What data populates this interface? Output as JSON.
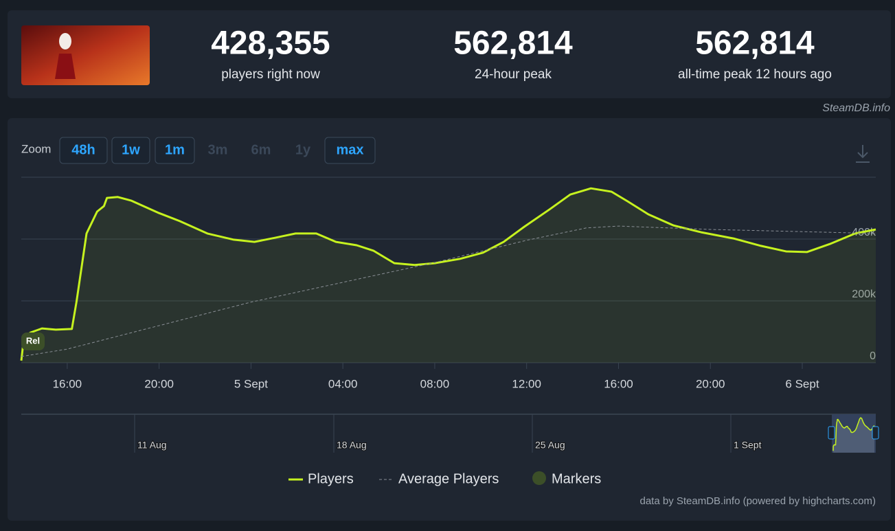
{
  "header": {
    "stats": [
      {
        "value": "428,355",
        "label": "players right now"
      },
      {
        "value": "562,814",
        "label": "24-hour peak"
      },
      {
        "value": "562,814",
        "label": "all-time peak 12 hours ago"
      }
    ],
    "source": "SteamDB.info"
  },
  "zoom": {
    "label": "Zoom",
    "buttons": [
      "48h",
      "1w",
      "1m",
      "3m",
      "6m",
      "1y",
      "max"
    ],
    "enabled": [
      true,
      true,
      true,
      false,
      false,
      false,
      true
    ]
  },
  "chart_data": {
    "type": "line",
    "series": [
      {
        "name": "Players",
        "color": "#c6f21f",
        "x": [
          -10,
          -9.88,
          -9.58,
          -9.1,
          -8.5,
          -7.8,
          -7.6,
          -7.16,
          -6.7,
          -6.4,
          -6.27,
          -5.8,
          -5.2,
          -4.0,
          -3.1,
          -1.9,
          -0.75,
          0.15,
          1.04,
          1.94,
          2.84,
          3.7,
          4.6,
          5.34,
          6.24,
          7.13,
          8.0,
          9.1,
          10.1,
          11.0,
          11.9,
          13.0,
          13.9,
          14.8,
          15.7,
          16.4,
          17.3,
          18.4,
          19.6,
          21.0,
          22.2,
          23.3,
          24.2,
          25.2,
          26.3,
          27.2
        ],
        "values": [
          6700,
          84000,
          98000,
          111000,
          107000,
          109000,
          196000,
          418000,
          489000,
          507000,
          533000,
          536000,
          524000,
          484000,
          458000,
          418000,
          398000,
          391000,
          404000,
          418000,
          418000,
          391000,
          380000,
          362000,
          322000,
          316000,
          322000,
          336000,
          356000,
          391000,
          440000,
          496000,
          544000,
          564000,
          553000,
          522000,
          480000,
          444000,
          422000,
          402000,
          378000,
          360000,
          358000,
          384000,
          418000,
          431000
        ]
      },
      {
        "name": "Average Players",
        "color": "#8a8f96",
        "x": [
          -10,
          -8,
          0,
          8,
          12,
          14.6,
          16,
          20,
          24,
          27.2
        ],
        "values": [
          20000,
          44000,
          196000,
          324000,
          396000,
          436000,
          442000,
          431000,
          424000,
          418000
        ]
      }
    ],
    "markers": {
      "name": "Markers",
      "color": "#3c4f28",
      "labels": [
        "Rel"
      ]
    },
    "xlim": [
      -10,
      27.2
    ],
    "xticks": [
      {
        "value": -8,
        "label": "16:00"
      },
      {
        "value": -4,
        "label": "20:00"
      },
      {
        "value": 0,
        "label": "5 Sept"
      },
      {
        "value": 4,
        "label": "04:00"
      },
      {
        "value": 8,
        "label": "08:00"
      },
      {
        "value": 12,
        "label": "12:00"
      },
      {
        "value": 16,
        "label": "16:00"
      },
      {
        "value": 20,
        "label": "20:00"
      },
      {
        "value": 24,
        "label": "6 Sept"
      }
    ],
    "ylim": [
      0,
      600000
    ],
    "yticks": [
      0,
      {
        "value": 200000,
        "label": "200k"
      },
      {
        "value": 400000,
        "label": "400k"
      }
    ],
    "grid": true,
    "navigator_labels": [
      "11 Aug",
      "18 Aug",
      "25 Aug",
      "1 Sept"
    ],
    "credits": "data by SteamDB.info (powered by highcharts.com)"
  }
}
